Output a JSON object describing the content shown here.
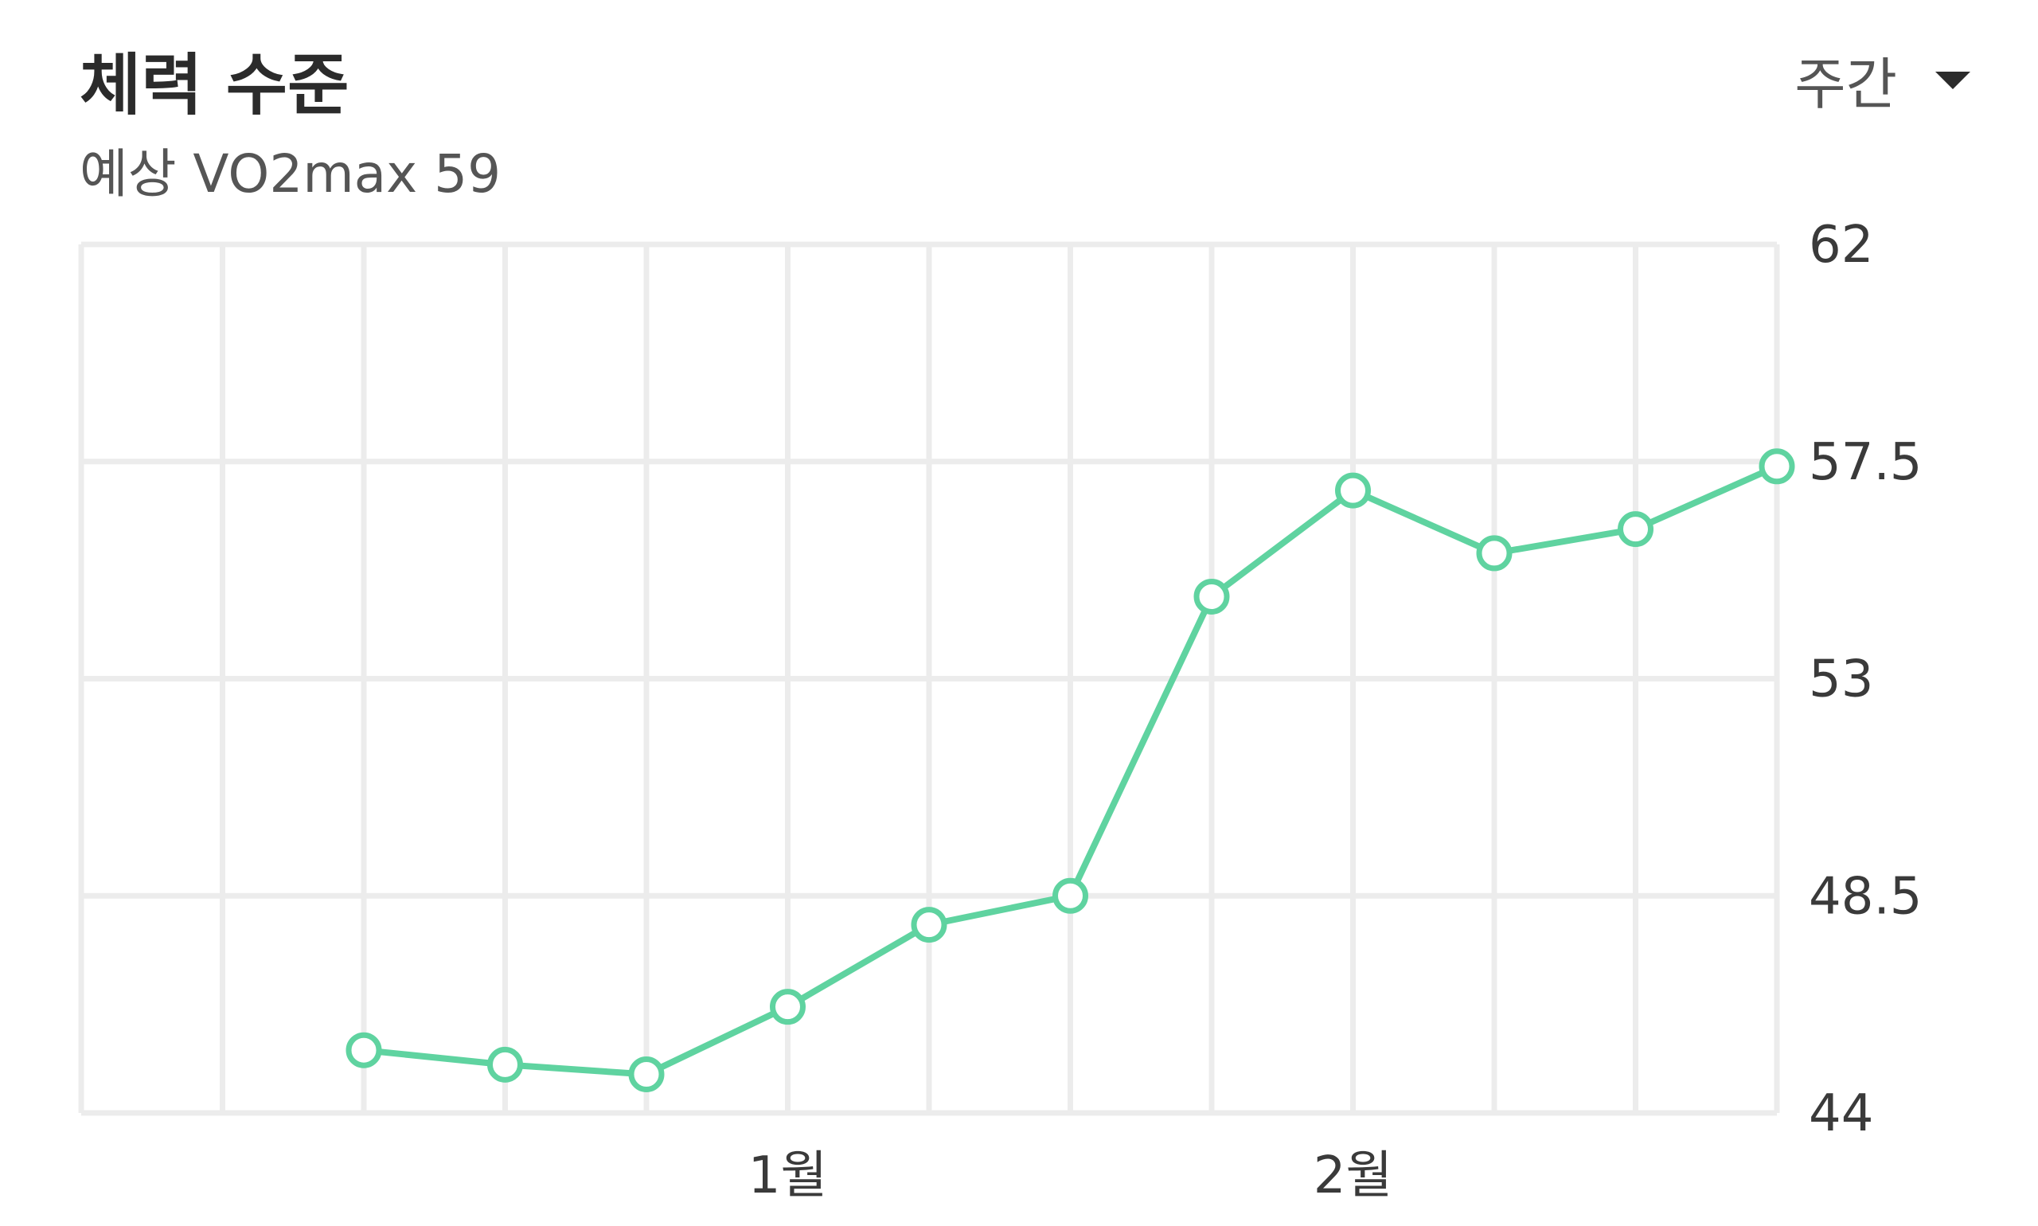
{
  "header": {
    "title": "체력 수준",
    "subtitle": "예상 VO2max 59",
    "period": "주간"
  },
  "colors": {
    "line": "#5fd3a0",
    "grid": "#ececec",
    "text": "#333333"
  },
  "chart_data": {
    "type": "line",
    "title": "체력 수준",
    "subtitle": "예상 VO2max 59",
    "y_axis_position": "right",
    "ylim": [
      44,
      62
    ],
    "y_ticks": [
      "62",
      "57.5",
      "53",
      "48.5",
      "44"
    ],
    "y_tick_values": [
      62,
      57.5,
      53,
      48.5,
      44
    ],
    "x_slots": 12,
    "x_tick_labels": [
      {
        "slot": 5,
        "label": "1월"
      },
      {
        "slot": 9,
        "label": "2월"
      }
    ],
    "grid": true,
    "series": [
      {
        "points": [
          {
            "slot": 2,
            "value": 45.3
          },
          {
            "slot": 3,
            "value": 45.0
          },
          {
            "slot": 4,
            "value": 44.8
          },
          {
            "slot": 5,
            "value": 46.2
          },
          {
            "slot": 6,
            "value": 47.9
          },
          {
            "slot": 7,
            "value": 48.5
          },
          {
            "slot": 8,
            "value": 54.7
          },
          {
            "slot": 9,
            "value": 56.9
          },
          {
            "slot": 10,
            "value": 55.6
          },
          {
            "slot": 11,
            "value": 56.1
          },
          {
            "slot": 12,
            "value": 57.4
          }
        ]
      }
    ]
  }
}
